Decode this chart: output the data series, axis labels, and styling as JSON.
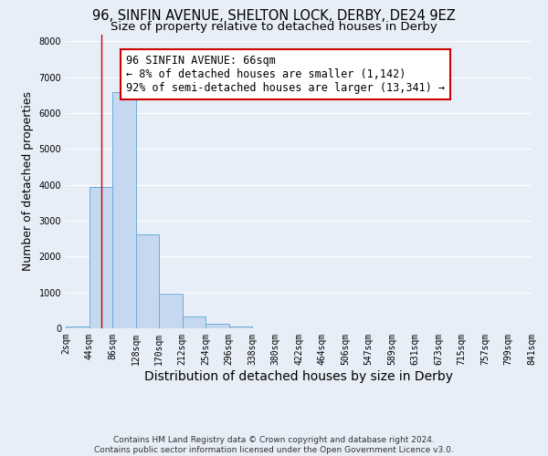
{
  "title1": "96, SINFIN AVENUE, SHELTON LOCK, DERBY, DE24 9EZ",
  "title2": "Size of property relative to detached houses in Derby",
  "xlabel": "Distribution of detached houses by size in Derby",
  "ylabel": "Number of detached properties",
  "bar_bins": [
    2,
    44,
    86,
    128,
    170,
    212,
    254,
    296,
    338,
    380,
    422,
    464,
    506,
    547,
    589,
    631,
    673,
    715,
    757,
    799,
    841
  ],
  "bar_values": [
    60,
    3950,
    6580,
    2620,
    960,
    330,
    120,
    60,
    0,
    0,
    0,
    0,
    0,
    0,
    0,
    0,
    0,
    0,
    0,
    0
  ],
  "bar_color": "#c5d8ef",
  "bar_edge_color": "#6aacd8",
  "bar_edge_width": 0.7,
  "property_line_x": 66,
  "property_line_color": "#cc0000",
  "annotation_text": "96 SINFIN AVENUE: 66sqm\n← 8% of detached houses are smaller (1,142)\n92% of semi-detached houses are larger (13,341) →",
  "annotation_box_color": "#ffffff",
  "annotation_box_edge_color": "#cc0000",
  "ylim": [
    0,
    8200
  ],
  "xlim": [
    2,
    841
  ],
  "tick_labels": [
    "2sqm",
    "44sqm",
    "86sqm",
    "128sqm",
    "170sqm",
    "212sqm",
    "254sqm",
    "296sqm",
    "338sqm",
    "380sqm",
    "422sqm",
    "464sqm",
    "506sqm",
    "547sqm",
    "589sqm",
    "631sqm",
    "673sqm",
    "715sqm",
    "757sqm",
    "799sqm",
    "841sqm"
  ],
  "tick_positions": [
    2,
    44,
    86,
    128,
    170,
    212,
    254,
    296,
    338,
    380,
    422,
    464,
    506,
    547,
    589,
    631,
    673,
    715,
    757,
    799,
    841
  ],
  "footnote": "Contains HM Land Registry data © Crown copyright and database right 2024.\nContains public sector information licensed under the Open Government Licence v3.0.",
  "bg_color": "#e8eef7",
  "grid_color": "#ffffff",
  "title1_fontsize": 10.5,
  "title2_fontsize": 9.5,
  "xlabel_fontsize": 10,
  "ylabel_fontsize": 9,
  "tick_fontsize": 7,
  "annotation_fontsize": 8.5,
  "footnote_fontsize": 6.5
}
